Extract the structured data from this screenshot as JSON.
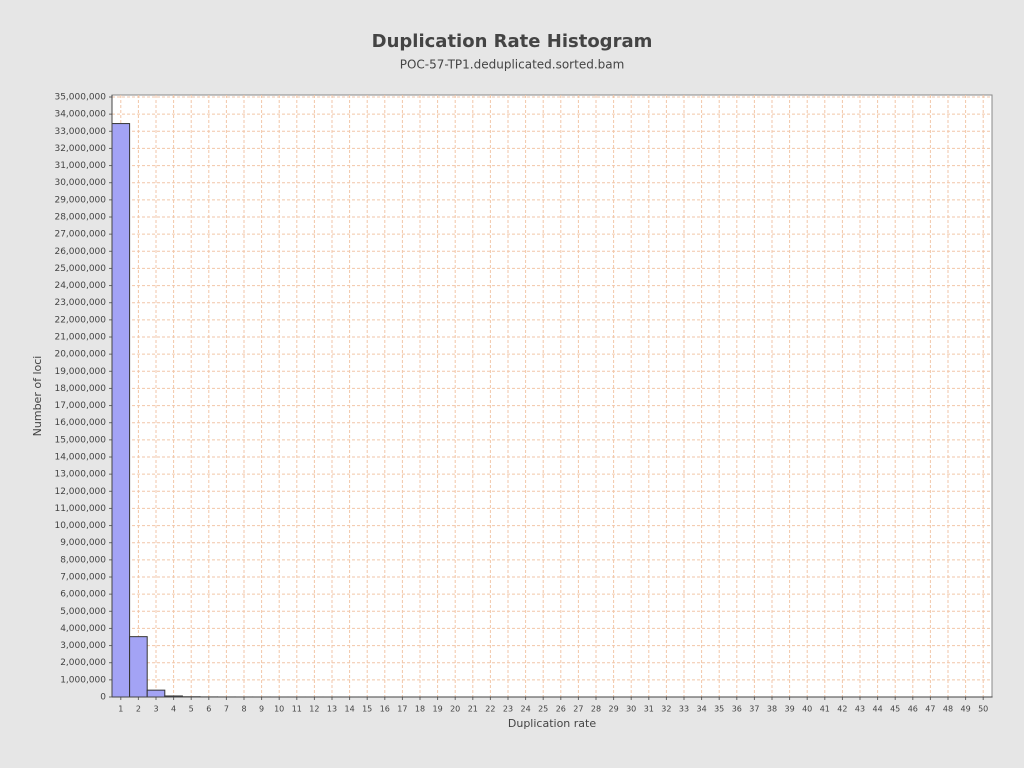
{
  "chart_data": {
    "type": "bar",
    "title": "Duplication Rate Histogram",
    "subtitle": "POC-57-TP1.deduplicated.sorted.bam",
    "x_label": "Duplication rate",
    "y_label": "Number of loci",
    "categories": [
      "1",
      "2",
      "3",
      "4",
      "5",
      "6",
      "7",
      "8",
      "9",
      "10",
      "11",
      "12",
      "13",
      "14",
      "15",
      "16",
      "17",
      "18",
      "19",
      "20",
      "21",
      "22",
      "23",
      "24",
      "25",
      "26",
      "27",
      "28",
      "29",
      "30",
      "31",
      "32",
      "33",
      "34",
      "35",
      "36",
      "37",
      "38",
      "39",
      "40",
      "41",
      "42",
      "43",
      "44",
      "45",
      "46",
      "47",
      "48",
      "49",
      "50"
    ],
    "values": [
      33450000,
      3520000,
      400000,
      60000,
      15000,
      6000,
      3000,
      2000,
      1500,
      1000,
      800,
      600,
      500,
      400,
      300,
      300,
      200,
      200,
      200,
      150,
      150,
      100,
      100,
      100,
      100,
      100,
      80,
      80,
      80,
      70,
      70,
      60,
      60,
      60,
      50,
      50,
      50,
      50,
      40,
      40,
      40,
      40,
      40,
      30,
      30,
      30,
      30,
      30,
      30,
      30
    ],
    "color": "#a3a3f5",
    "ylim": [
      0,
      35000000
    ],
    "yticks": [
      {
        "value": 0,
        "label": "0"
      },
      {
        "value": 1000000,
        "label": "1,000,000"
      },
      {
        "value": 2000000,
        "label": "2,000,000"
      },
      {
        "value": 3000000,
        "label": "3,000,000"
      },
      {
        "value": 4000000,
        "label": "4,000,000"
      },
      {
        "value": 5000000,
        "label": "5,000,000"
      },
      {
        "value": 6000000,
        "label": "6,000,000"
      },
      {
        "value": 7000000,
        "label": "7,000,000"
      },
      {
        "value": 8000000,
        "label": "8,000,000"
      },
      {
        "value": 9000000,
        "label": "9,000,000"
      },
      {
        "value": 10000000,
        "label": "10,000,000"
      },
      {
        "value": 11000000,
        "label": "11,000,000"
      },
      {
        "value": 12000000,
        "label": "12,000,000"
      },
      {
        "value": 13000000,
        "label": "13,000,000"
      },
      {
        "value": 14000000,
        "label": "14,000,000"
      },
      {
        "value": 15000000,
        "label": "15,000,000"
      },
      {
        "value": 16000000,
        "label": "16,000,000"
      },
      {
        "value": 17000000,
        "label": "17,000,000"
      },
      {
        "value": 18000000,
        "label": "18,000,000"
      },
      {
        "value": 19000000,
        "label": "19,000,000"
      },
      {
        "value": 20000000,
        "label": "20,000,000"
      },
      {
        "value": 21000000,
        "label": "21,000,000"
      },
      {
        "value": 22000000,
        "label": "22,000,000"
      },
      {
        "value": 23000000,
        "label": "23,000,000"
      },
      {
        "value": 24000000,
        "label": "24,000,000"
      },
      {
        "value": 25000000,
        "label": "25,000,000"
      },
      {
        "value": 26000000,
        "label": "26,000,000"
      },
      {
        "value": 27000000,
        "label": "27,000,000"
      },
      {
        "value": 28000000,
        "label": "28,000,000"
      },
      {
        "value": 29000000,
        "label": "29,000,000"
      },
      {
        "value": 30000000,
        "label": "30,000,000"
      },
      {
        "value": 31000000,
        "label": "31,000,000"
      },
      {
        "value": 32000000,
        "label": "32,000,000"
      },
      {
        "value": 33000000,
        "label": "33,000,000"
      },
      {
        "value": 34000000,
        "label": "34,000,000"
      },
      {
        "value": 35000000,
        "label": "35,000,000"
      }
    ],
    "grid": true
  }
}
